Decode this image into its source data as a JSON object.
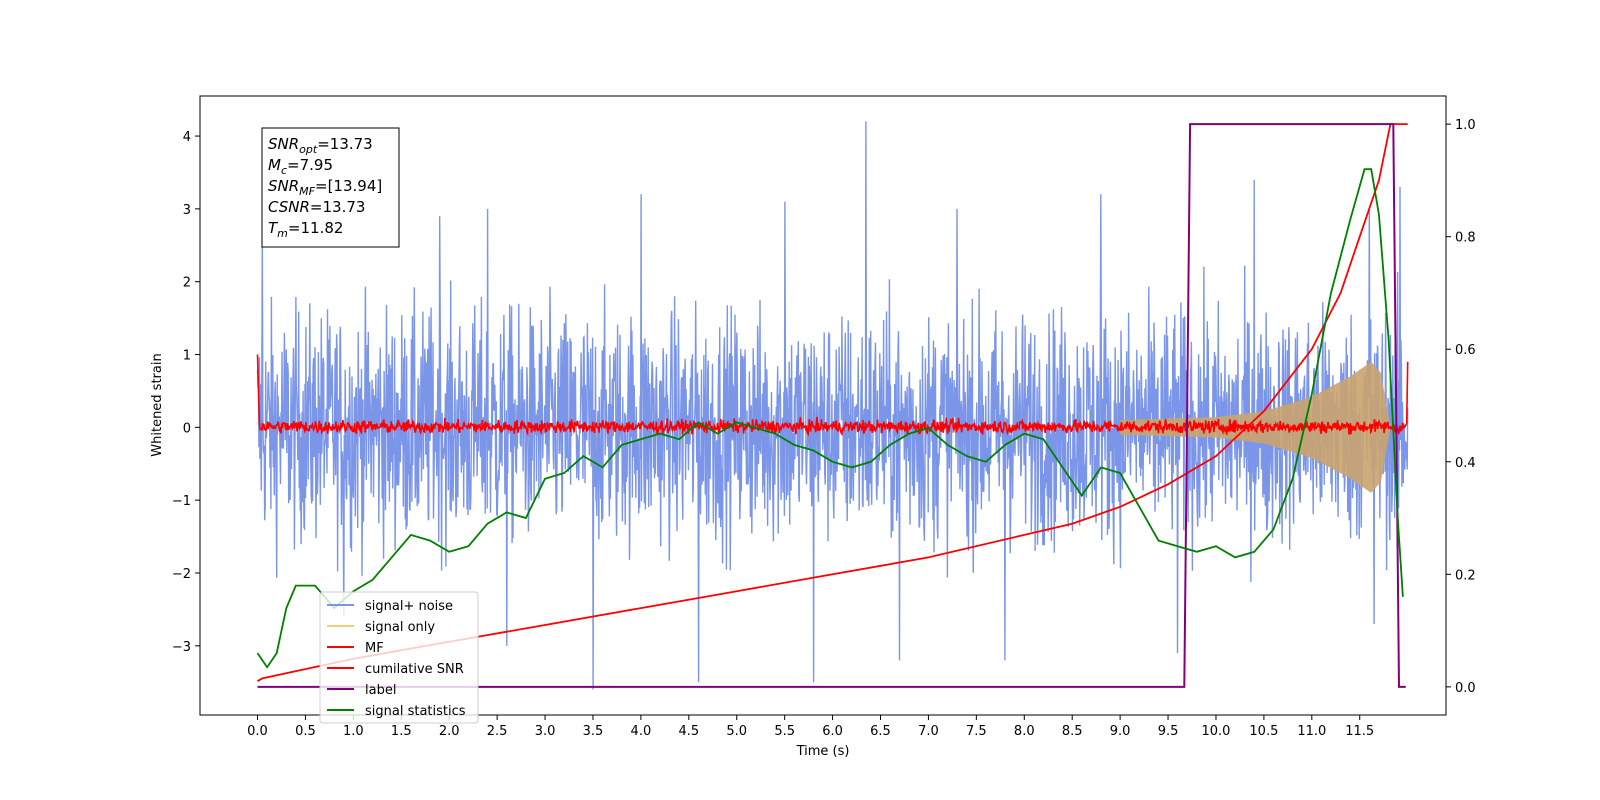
{
  "chart_data": {
    "type": "line",
    "xlabel": "Time (s)",
    "ylabel": "Whitened strain",
    "xlim": [
      -0.6,
      12.4
    ],
    "ylim": [
      -3.95,
      4.55
    ],
    "ylim_right": [
      -0.05,
      1.05
    ],
    "x_ticks": [
      0.0,
      0.5,
      1.0,
      1.5,
      2.0,
      2.5,
      3.0,
      3.5,
      4.0,
      4.5,
      5.0,
      5.5,
      6.0,
      6.5,
      7.0,
      7.5,
      8.0,
      8.5,
      9.0,
      9.5,
      10.0,
      10.5,
      11.0,
      11.5
    ],
    "x_tick_labels": [
      "0.0",
      "0.5",
      "1.0",
      "1.5",
      "2.0",
      "2.5",
      "3.0",
      "3.5",
      "4.0",
      "4.5",
      "5.0",
      "5.5",
      "6.0",
      "6.5",
      "7.0",
      "7.5",
      "8.0",
      "8.5",
      "9.0",
      "9.5",
      "10.0",
      "10.5",
      "11.0",
      "11.5"
    ],
    "y_ticks": [
      -3,
      -2,
      -1,
      0,
      1,
      2,
      3,
      4
    ],
    "y_tick_labels": [
      "−3",
      "−2",
      "−1",
      "0",
      "1",
      "2",
      "3",
      "4"
    ],
    "y_right_ticks": [
      0.0,
      0.2,
      0.4,
      0.6,
      0.8,
      1.0
    ],
    "y_right_tick_labels": [
      "0.0",
      "0.2",
      "0.4",
      "0.6",
      "0.8",
      "1.0"
    ],
    "grid": false,
    "legend_position": "lower-left",
    "info_box": {
      "lines": [
        {
          "base": "SNR",
          "sub": "opt",
          "rest": "=13.73"
        },
        {
          "base": "M",
          "sub": "c",
          "rest": "=7.95"
        },
        {
          "base": "SNR",
          "sub": "MF",
          "rest": "=[13.94]"
        },
        {
          "base": "CSNR",
          "sub": "",
          "rest": "=13.73"
        },
        {
          "base": "T",
          "sub": "m",
          "rest": "=11.82"
        }
      ]
    },
    "series": [
      {
        "name": "signal+ noise",
        "color": "#7b96e8",
        "axis": "left",
        "x_range": [
          0.0,
          12.0
        ],
        "typical_range": [
          -2.0,
          2.2
        ],
        "peaks": [
          {
            "x": 0.05,
            "y": 2.7
          },
          {
            "x": 0.9,
            "y": -2.6
          },
          {
            "x": 1.9,
            "y": 2.9
          },
          {
            "x": 2.4,
            "y": 3.0
          },
          {
            "x": 2.6,
            "y": -3.0
          },
          {
            "x": 3.5,
            "y": -3.6
          },
          {
            "x": 4.0,
            "y": 3.2
          },
          {
            "x": 4.6,
            "y": -3.5
          },
          {
            "x": 5.5,
            "y": 3.1
          },
          {
            "x": 5.8,
            "y": -3.5
          },
          {
            "x": 6.35,
            "y": 4.2
          },
          {
            "x": 6.7,
            "y": -3.2
          },
          {
            "x": 7.3,
            "y": 3.0
          },
          {
            "x": 7.8,
            "y": -3.2
          },
          {
            "x": 8.8,
            "y": 3.2
          },
          {
            "x": 9.6,
            "y": -3.1
          },
          {
            "x": 10.4,
            "y": 3.4
          },
          {
            "x": 11.6,
            "y": 3.0
          },
          {
            "x": 11.65,
            "y": -2.7
          },
          {
            "x": 11.92,
            "y": 3.3
          }
        ]
      },
      {
        "name": "signal only",
        "color": "#f9c97a",
        "axis": "left",
        "envelope": {
          "t_merger": 11.82,
          "amp": [
            [
              9.0,
              0.1
            ],
            [
              10.0,
              0.14
            ],
            [
              10.5,
              0.22
            ],
            [
              11.0,
              0.42
            ],
            [
              11.4,
              0.7
            ],
            [
              11.62,
              0.9
            ],
            [
              11.72,
              0.75
            ],
            [
              11.82,
              0.0
            ]
          ]
        }
      },
      {
        "name": "MF",
        "color": "#ff0000",
        "axis": "left",
        "x_range": [
          0.0,
          12.0
        ],
        "typical_range": [
          -0.1,
          0.12
        ],
        "start_value": 1.0,
        "end_value": 0.9
      },
      {
        "name": "cumilative SNR",
        "color": "#ff0000",
        "axis": "right",
        "points": [
          [
            0.0,
            0.01
          ],
          [
            0.05,
            0.015
          ],
          [
            1.0,
            0.05
          ],
          [
            2.0,
            0.08
          ],
          [
            3.0,
            0.11
          ],
          [
            4.0,
            0.14
          ],
          [
            5.0,
            0.17
          ],
          [
            6.0,
            0.2
          ],
          [
            7.0,
            0.23
          ],
          [
            8.0,
            0.27
          ],
          [
            8.5,
            0.29
          ],
          [
            9.0,
            0.32
          ],
          [
            9.5,
            0.36
          ],
          [
            10.0,
            0.41
          ],
          [
            10.5,
            0.49
          ],
          [
            11.0,
            0.6
          ],
          [
            11.3,
            0.7
          ],
          [
            11.5,
            0.8
          ],
          [
            11.7,
            0.9
          ],
          [
            11.82,
            1.0
          ],
          [
            12.0,
            1.0
          ]
        ]
      },
      {
        "name": "label",
        "color": "#800080",
        "axis": "right",
        "points": [
          [
            0.0,
            0.0
          ],
          [
            9.67,
            0.0
          ],
          [
            9.73,
            1.0
          ],
          [
            11.85,
            1.0
          ],
          [
            11.91,
            0.0
          ],
          [
            11.98,
            0.0
          ]
        ]
      },
      {
        "name": "signal statistics",
        "color": "#008000",
        "axis": "right",
        "points": [
          [
            0.0,
            0.06
          ],
          [
            0.1,
            0.035
          ],
          [
            0.2,
            0.06
          ],
          [
            0.3,
            0.14
          ],
          [
            0.4,
            0.18
          ],
          [
            0.5,
            0.18
          ],
          [
            0.6,
            0.18
          ],
          [
            0.8,
            0.14
          ],
          [
            1.0,
            0.17
          ],
          [
            1.2,
            0.19
          ],
          [
            1.4,
            0.23
          ],
          [
            1.6,
            0.27
          ],
          [
            1.8,
            0.26
          ],
          [
            2.0,
            0.24
          ],
          [
            2.2,
            0.25
          ],
          [
            2.4,
            0.29
          ],
          [
            2.6,
            0.31
          ],
          [
            2.8,
            0.3
          ],
          [
            3.0,
            0.37
          ],
          [
            3.2,
            0.38
          ],
          [
            3.4,
            0.41
          ],
          [
            3.6,
            0.39
          ],
          [
            3.8,
            0.43
          ],
          [
            4.0,
            0.44
          ],
          [
            4.2,
            0.45
          ],
          [
            4.4,
            0.44
          ],
          [
            4.6,
            0.47
          ],
          [
            4.8,
            0.45
          ],
          [
            5.0,
            0.47
          ],
          [
            5.2,
            0.46
          ],
          [
            5.4,
            0.45
          ],
          [
            5.6,
            0.43
          ],
          [
            5.8,
            0.42
          ],
          [
            6.0,
            0.4
          ],
          [
            6.2,
            0.39
          ],
          [
            6.4,
            0.4
          ],
          [
            6.6,
            0.43
          ],
          [
            6.8,
            0.45
          ],
          [
            7.0,
            0.46
          ],
          [
            7.2,
            0.43
          ],
          [
            7.4,
            0.41
          ],
          [
            7.6,
            0.4
          ],
          [
            7.8,
            0.43
          ],
          [
            8.0,
            0.45
          ],
          [
            8.2,
            0.44
          ],
          [
            8.4,
            0.39
          ],
          [
            8.6,
            0.34
          ],
          [
            8.8,
            0.39
          ],
          [
            9.0,
            0.38
          ],
          [
            9.2,
            0.32
          ],
          [
            9.4,
            0.26
          ],
          [
            9.6,
            0.25
          ],
          [
            9.8,
            0.24
          ],
          [
            10.0,
            0.25
          ],
          [
            10.2,
            0.23
          ],
          [
            10.4,
            0.24
          ],
          [
            10.6,
            0.28
          ],
          [
            10.8,
            0.37
          ],
          [
            11.0,
            0.52
          ],
          [
            11.2,
            0.7
          ],
          [
            11.4,
            0.83
          ],
          [
            11.55,
            0.92
          ],
          [
            11.62,
            0.92
          ],
          [
            11.7,
            0.84
          ],
          [
            11.8,
            0.62
          ],
          [
            11.9,
            0.29
          ],
          [
            11.95,
            0.16
          ]
        ]
      }
    ]
  }
}
